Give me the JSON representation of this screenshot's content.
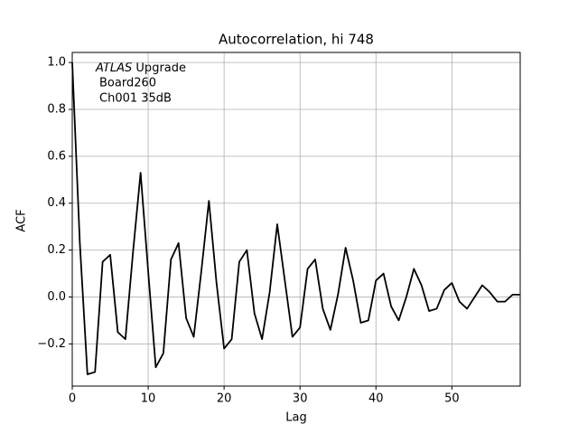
{
  "chart_data": {
    "type": "line",
    "title": "Autocorrelation, hi 748",
    "xlabel": "Lag",
    "ylabel": "ACF",
    "annotation": [
      "ATLAS",
      "Upgrade",
      "Board260",
      "Ch001 35dB"
    ],
    "x": [
      0,
      1,
      2,
      3,
      4,
      5,
      6,
      7,
      8,
      9,
      10,
      11,
      12,
      13,
      14,
      15,
      16,
      17,
      18,
      19,
      20,
      21,
      22,
      23,
      24,
      25,
      26,
      27,
      28,
      29,
      30,
      31,
      32,
      33,
      34,
      35,
      36,
      37,
      38,
      39,
      40,
      41,
      42,
      43,
      44,
      45,
      46,
      47,
      48,
      49,
      50,
      51,
      52,
      53,
      54,
      55,
      56,
      57,
      58,
      59
    ],
    "series": [
      {
        "color": "#000000",
        "values": [
          1.0,
          0.23,
          -0.33,
          -0.32,
          0.15,
          0.18,
          -0.15,
          -0.18,
          0.19,
          0.53,
          0.11,
          -0.3,
          -0.24,
          0.16,
          0.23,
          -0.09,
          -0.17,
          0.11,
          0.41,
          0.06,
          -0.22,
          -0.18,
          0.15,
          0.2,
          -0.07,
          -0.18,
          0.02,
          0.31,
          0.07,
          -0.17,
          -0.13,
          0.12,
          0.16,
          -0.05,
          -0.14,
          0.01,
          0.21,
          0.07,
          -0.11,
          -0.1,
          0.07,
          0.1,
          -0.04,
          -0.1,
          0.0,
          0.12,
          0.05,
          -0.06,
          -0.05,
          0.03,
          0.06,
          -0.02,
          -0.05,
          0.0,
          0.05,
          0.02,
          -0.02,
          -0.02,
          0.01,
          0.01
        ]
      }
    ],
    "xlim": [
      0,
      59
    ],
    "xticks": [
      0,
      10,
      20,
      30,
      40,
      50
    ],
    "ylim": [
      -0.38,
      1.043
    ],
    "yticks": [
      {
        "value": -0.2,
        "label": "−0.2"
      },
      {
        "value": 0,
        "label": "0.0"
      },
      {
        "value": 0.2,
        "label": "0.2"
      },
      {
        "value": 0.4,
        "label": "0.4"
      },
      {
        "value": 0.6,
        "label": "0.6"
      },
      {
        "value": 0.8,
        "label": "0.8"
      },
      {
        "value": 1.0,
        "label": "1.0"
      }
    ],
    "grid": true
  }
}
